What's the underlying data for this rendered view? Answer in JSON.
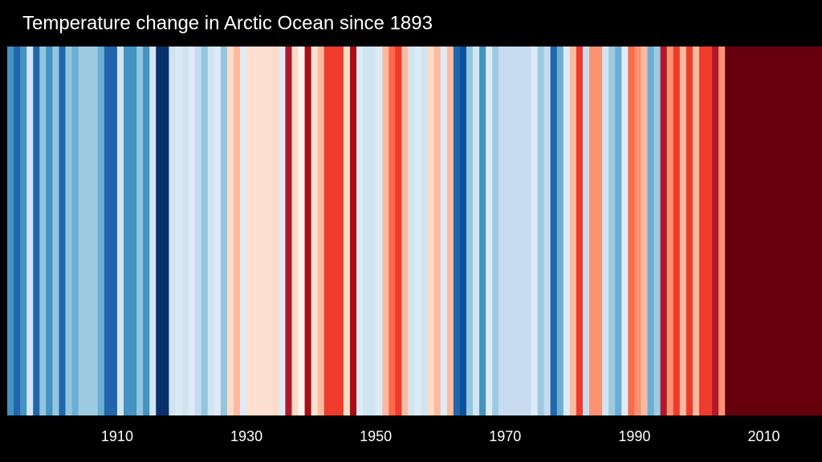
{
  "chart_data": {
    "type": "stripes",
    "title": "Temperature change in Arctic Ocean since 1893",
    "x": [
      1893,
      1894,
      1895,
      1896,
      1897,
      1898,
      1899,
      1900,
      1901,
      1902,
      1903,
      1904,
      1905,
      1906,
      1907,
      1908,
      1909,
      1910,
      1911,
      1912,
      1913,
      1914,
      1915,
      1916,
      1917,
      1918,
      1919,
      1920,
      1921,
      1922,
      1923,
      1924,
      1925,
      1926,
      1927,
      1928,
      1929,
      1930,
      1931,
      1932,
      1933,
      1934,
      1935,
      1936,
      1937,
      1938,
      1939,
      1940,
      1941,
      1942,
      1943,
      1944,
      1945,
      1946,
      1947,
      1948,
      1949,
      1950,
      1951,
      1952,
      1953,
      1954,
      1955,
      1956,
      1957,
      1958,
      1959,
      1960,
      1961,
      1962,
      1963,
      1964,
      1965,
      1966,
      1967,
      1968,
      1969,
      1970,
      1971,
      1972,
      1973,
      1974,
      1975,
      1976,
      1977,
      1978,
      1979,
      1980,
      1981,
      1982,
      1983,
      1984,
      1985,
      1986,
      1987,
      1988,
      1989,
      1990,
      1991,
      1992,
      1993,
      1994,
      1995,
      1996,
      1997,
      1998,
      1999,
      2000,
      2001,
      2002,
      2003,
      2004,
      2005,
      2006,
      2007,
      2008,
      2009,
      2010,
      2011,
      2012,
      2013,
      2014,
      2015,
      2016,
      2017,
      2018
    ],
    "colors": [
      "#4393c3",
      "#2166ac",
      "#4393c3",
      "#d1e5f0",
      "#2166ac",
      "#92c5de",
      "#4393c3",
      "#92c5de",
      "#2166ac",
      "#92c5de",
      "#6baed6",
      "#9ecae1",
      "#9ecae1",
      "#9ecae1",
      "#6baed6",
      "#2166ac",
      "#2166ac",
      "#d1e5f0",
      "#4393c3",
      "#4393c3",
      "#92c5de",
      "#4393c3",
      "#d1e5f0",
      "#08306b",
      "#08306b",
      "#d1e5f0",
      "#deebf7",
      "#d1e5f0",
      "#deebf7",
      "#c6dbef",
      "#92c5de",
      "#d1e5f0",
      "#deebf7",
      "#92c5de",
      "#fddbc7",
      "#fcbba1",
      "#deebf7",
      "#fee0d2",
      "#fee0d2",
      "#fee0d2",
      "#fee0d2",
      "#fddbc7",
      "#deebf7",
      "#b2182b",
      "#fddbc7",
      "#fff5f0",
      "#a50f15",
      "#fee0d2",
      "#fcbba1",
      "#ef3b2c",
      "#ef3b2c",
      "#ef3b2c",
      "#fddbc7",
      "#a50f15",
      "#deebf7",
      "#d1e5f0",
      "#d1e5f0",
      "#deebf7",
      "#fcbba1",
      "#fb6a4a",
      "#ef3b2c",
      "#fcbba1",
      "#d1e5f0",
      "#deebf7",
      "#d1e5f0",
      "#fddbc7",
      "#fcbba1",
      "#deebf7",
      "#fcbba1",
      "#2166ac",
      "#08519c",
      "#92c5de",
      "#d1e5f0",
      "#4393c3",
      "#deebf7",
      "#9ecae1",
      "#c6dbef",
      "#c6dbef",
      "#c6dbef",
      "#c6dbef",
      "#c6dbef",
      "#deebf7",
      "#9ecae1",
      "#c6dbef",
      "#2166ac",
      "#6baed6",
      "#deebf7",
      "#fcbba1",
      "#ef3b2c",
      "#c6dbef",
      "#fc9272",
      "#fc9272",
      "#d1e5f0",
      "#9ecae1",
      "#6baed6",
      "#deebf7",
      "#fb6a4a",
      "#fc9272",
      "#fcbba1",
      "#6baed6",
      "#9ecae1",
      "#b2182b",
      "#fc9272",
      "#ef3b2c",
      "#fcbba1",
      "#ef3b2c",
      "#fcbba1",
      "#ef3b2c",
      "#ef3b2c",
      "#b2182b",
      "#fc9272",
      "#67000d",
      "#67000d",
      "#67000d",
      "#67000d",
      "#67000d",
      "#67000d",
      "#67000d",
      "#67000d",
      "#67000d",
      "#67000d",
      "#67000d",
      "#67000d",
      "#67000d",
      "#67000d",
      "#67000d"
    ],
    "xlim": [
      1893,
      2019
    ],
    "xticks": [
      1910,
      1930,
      1950,
      1970,
      1990,
      2010
    ]
  }
}
